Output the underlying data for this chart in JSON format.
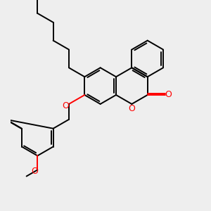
{
  "background_color": "#eeeeee",
  "bond_color": "#000000",
  "oxygen_color": "#ff0000",
  "line_width": 1.4,
  "figsize": [
    3.0,
    3.0
  ],
  "dpi": 100,
  "xlim": [
    -1.5,
    7.5
  ],
  "ylim": [
    -5.5,
    4.5
  ]
}
